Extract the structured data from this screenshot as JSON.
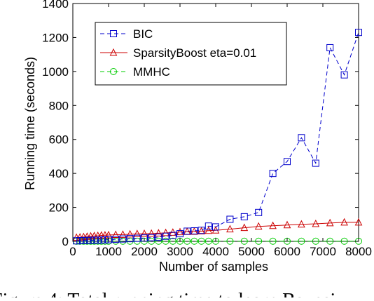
{
  "chart_data": {
    "type": "line",
    "title": "",
    "xlabel": "Number of samples",
    "ylabel": "Running time (seconds)",
    "xlim": [
      0,
      8000
    ],
    "ylim": [
      0,
      1400
    ],
    "x_ticks": [
      0,
      1000,
      2000,
      3000,
      4000,
      5000,
      6000,
      7000,
      8000
    ],
    "y_ticks": [
      0,
      200,
      400,
      600,
      800,
      1000,
      1200,
      1400
    ],
    "grid": false,
    "legend_position": "top-left",
    "series": [
      {
        "name": "BIC",
        "color": "#0000cc",
        "line_style": "dashed",
        "marker": "square",
        "x": [
          100,
          200,
          300,
          400,
          500,
          600,
          700,
          800,
          900,
          1000,
          1200,
          1400,
          1600,
          1800,
          2000,
          2200,
          2400,
          2600,
          2800,
          3000,
          3200,
          3400,
          3600,
          3800,
          4000,
          4400,
          4800,
          5200,
          5600,
          6000,
          6400,
          6800,
          7200,
          7600,
          8000
        ],
        "y": [
          3,
          4,
          5,
          5,
          6,
          7,
          7,
          8,
          9,
          10,
          12,
          14,
          16,
          18,
          20,
          22,
          25,
          30,
          35,
          45,
          60,
          62,
          65,
          90,
          85,
          130,
          145,
          170,
          400,
          470,
          610,
          460,
          1140,
          980,
          1230
        ]
      },
      {
        "name": "SparsityBoost eta=0.01",
        "color": "#cc0000",
        "line_style": "solid",
        "marker": "triangle",
        "x": [
          100,
          200,
          300,
          400,
          500,
          600,
          700,
          800,
          900,
          1000,
          1200,
          1400,
          1600,
          1800,
          2000,
          2200,
          2400,
          2600,
          2800,
          3000,
          3200,
          3400,
          3600,
          3800,
          4000,
          4400,
          4800,
          5200,
          5600,
          6000,
          6400,
          6800,
          7200,
          7600,
          8000
        ],
        "y": [
          22,
          24,
          26,
          28,
          30,
          32,
          33,
          35,
          36,
          37,
          39,
          40,
          42,
          44,
          45,
          46,
          48,
          50,
          52,
          55,
          57,
          58,
          60,
          63,
          65,
          72,
          80,
          88,
          92,
          96,
          100,
          103,
          108,
          112,
          112
        ]
      },
      {
        "name": "MMHC",
        "color": "#00cc00",
        "line_style": "dashed",
        "marker": "circle",
        "x": [
          100,
          200,
          300,
          400,
          500,
          600,
          700,
          800,
          900,
          1000,
          1200,
          1400,
          1600,
          1800,
          2000,
          2200,
          2400,
          2600,
          2800,
          3000,
          3200,
          3400,
          3600,
          3800,
          4000,
          4400,
          4800,
          5200,
          5600,
          6000,
          6400,
          6800,
          7200,
          7600,
          8000
        ],
        "y": [
          1,
          1,
          1,
          1,
          1,
          1,
          1,
          1,
          1,
          1,
          1,
          1,
          1,
          1,
          1,
          1,
          1,
          1,
          1,
          1,
          1,
          1,
          1,
          1,
          1,
          1,
          1,
          1,
          1,
          1,
          1,
          1,
          1,
          1,
          1
        ]
      }
    ]
  },
  "caption_fragment": "Figure 4:  Total running time to learn Bayesi"
}
